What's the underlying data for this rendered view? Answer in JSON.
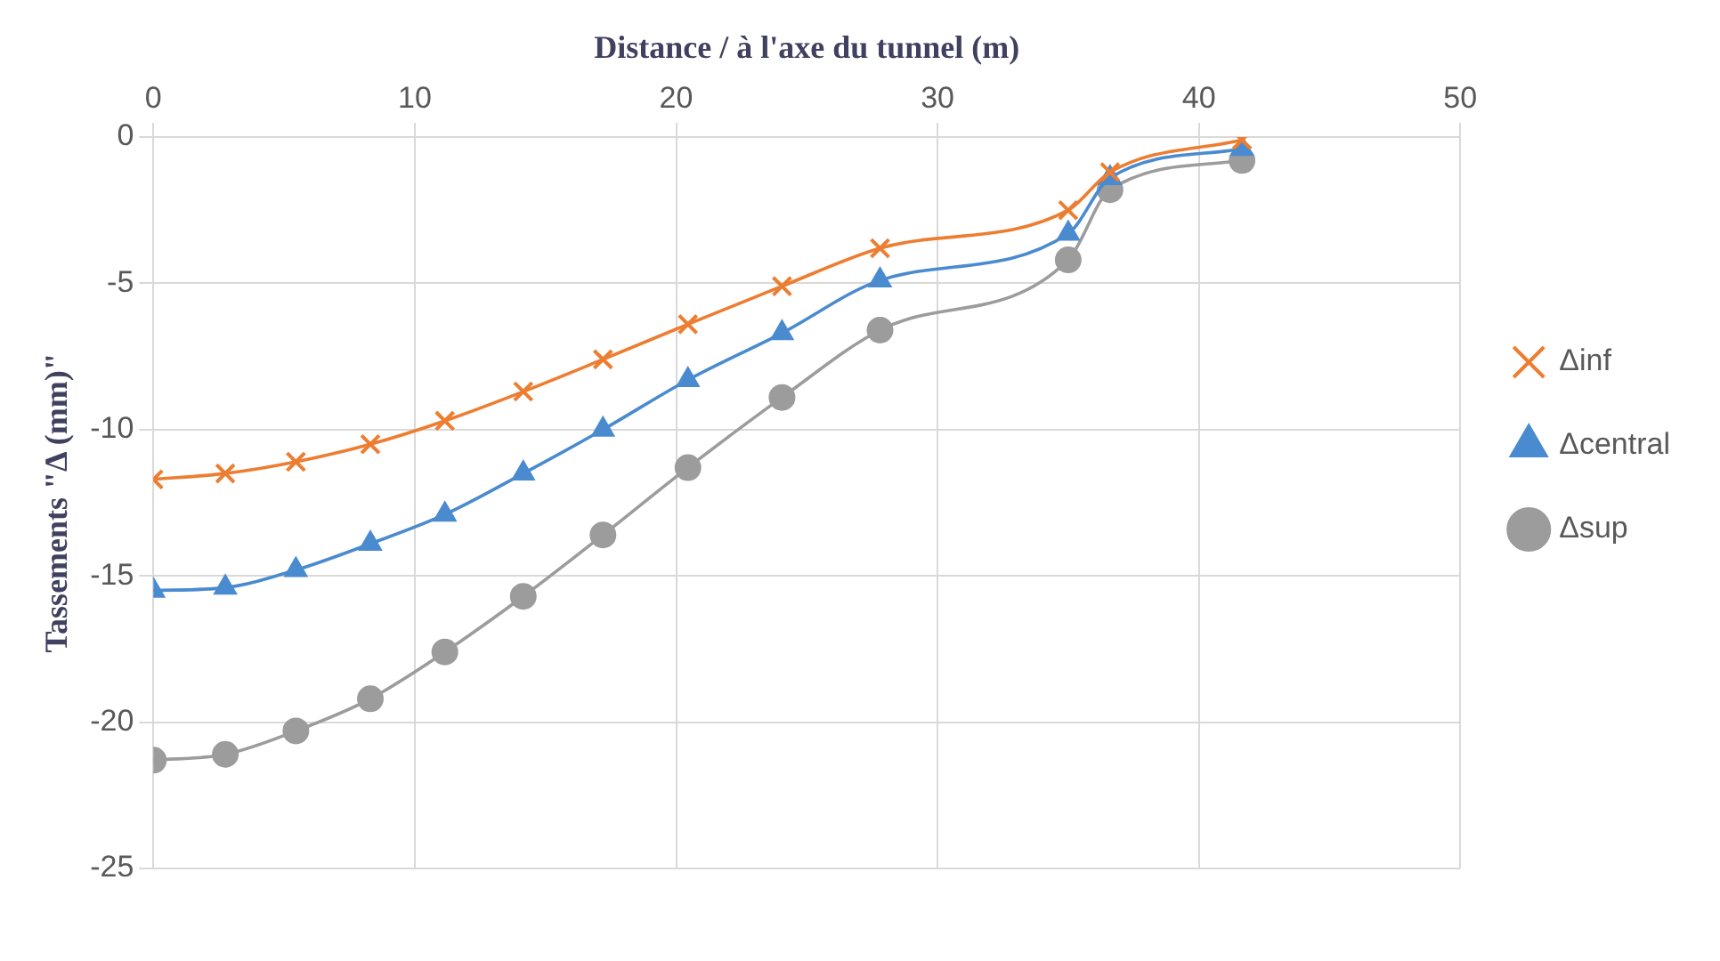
{
  "chart_data": {
    "type": "line",
    "xlabel": "Distance / à l'axe du tunnel (m)",
    "ylabel": "Tassements \"Δ (mm)\"",
    "x": [
      0,
      2.75,
      5.45,
      8.3,
      11.15,
      14.15,
      17.2,
      20.45,
      24.05,
      27.8,
      35,
      36.6,
      41.65
    ],
    "xlim": [
      0,
      50
    ],
    "xticks": [
      0,
      10,
      20,
      30,
      40,
      50
    ],
    "ylim": [
      -25,
      0
    ],
    "yticks": [
      -25,
      -20,
      -15,
      -10,
      -5,
      0
    ],
    "grid": true,
    "legend": "right",
    "series": [
      {
        "name": "Δcentral",
        "color": "#4a8bd0",
        "marker": "triangle",
        "values": [
          -15.5,
          -15.4,
          -14.8,
          -13.9,
          -12.9,
          -11.5,
          -10.0,
          -8.3,
          -6.7,
          -4.9,
          -3.3,
          -1.4,
          -0.4
        ]
      },
      {
        "name": "Δinf",
        "color": "#ed7d31",
        "marker": "cross",
        "values": [
          -11.7,
          -11.5,
          -11.1,
          -10.5,
          -9.7,
          -8.7,
          -7.6,
          -6.4,
          -5.1,
          -3.8,
          -2.5,
          -1.2,
          -0.1
        ]
      },
      {
        "name": "Δsup",
        "color": "#9c9c9c",
        "marker": "circle",
        "values": [
          -21.3,
          -21.1,
          -20.3,
          -19.2,
          -17.6,
          -15.7,
          -13.6,
          -11.3,
          -8.9,
          -6.6,
          -4.2,
          -1.8,
          -0.8
        ]
      }
    ]
  }
}
